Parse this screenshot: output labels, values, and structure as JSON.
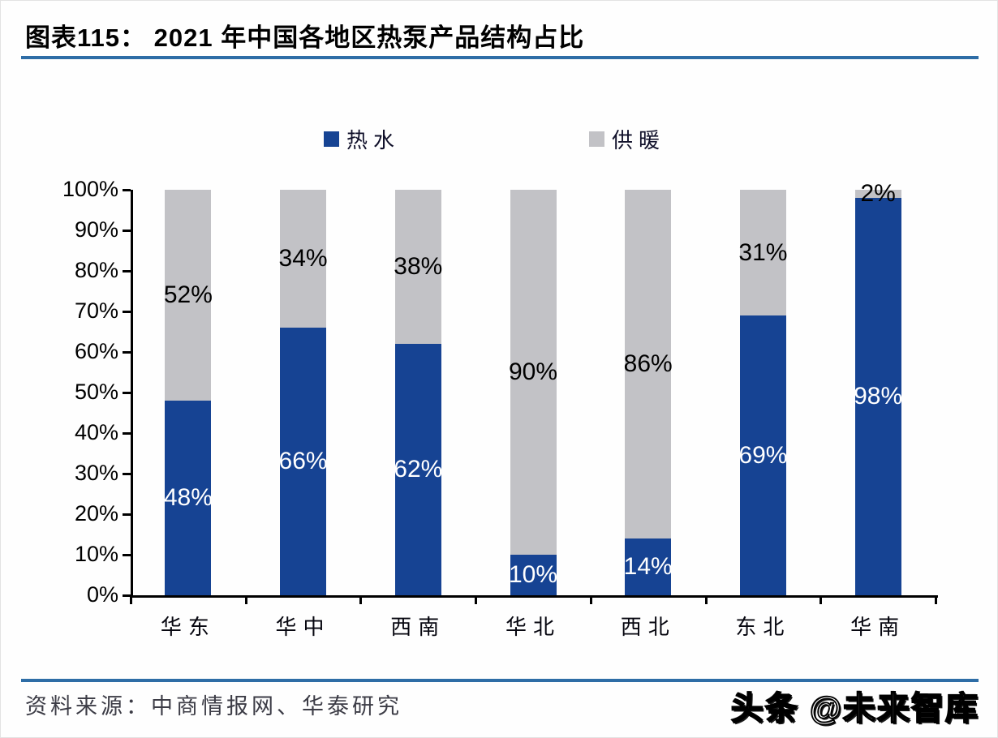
{
  "header": {
    "title": "图表115：  2021 年中国各地区热泵产品结构占比"
  },
  "legend": {
    "items": [
      {
        "label": "热水",
        "color": "#164393"
      },
      {
        "label": "供暖",
        "color": "#c2c2c6"
      }
    ]
  },
  "chart_data": {
    "type": "bar",
    "stacked": true,
    "title": "2021 年中国各地区热泵产品结构占比",
    "categories": [
      "华东",
      "华中",
      "西南",
      "华北",
      "西北",
      "东北",
      "华南"
    ],
    "series": [
      {
        "name": "热水",
        "color": "#164393",
        "values": [
          48,
          66,
          62,
          10,
          14,
          69,
          98
        ]
      },
      {
        "name": "供暖",
        "color": "#c2c2c6",
        "values": [
          52,
          34,
          38,
          90,
          86,
          31,
          2
        ]
      }
    ],
    "ylim": [
      0,
      100
    ],
    "yticks": [
      "0%",
      "10%",
      "20%",
      "30%",
      "40%",
      "50%",
      "60%",
      "70%",
      "80%",
      "90%",
      "100%"
    ],
    "data_labels": {
      "热水": [
        "48%",
        "66%",
        "62%",
        "10%",
        "14%",
        "69%",
        "98%"
      ],
      "供暖": [
        "52%",
        "34%",
        "38%",
        "90%",
        "86%",
        "31%",
        "2%"
      ]
    },
    "legend_position": "top",
    "grid": false
  },
  "footer": {
    "source": "资料来源：中商情报网、华泰研究",
    "watermark": "头条 @未来智库"
  },
  "colors": {
    "bar_blue": "#164393",
    "bar_gray": "#c2c2c6",
    "rule_blue": "#2e6da6",
    "axis_black": "#000000"
  }
}
